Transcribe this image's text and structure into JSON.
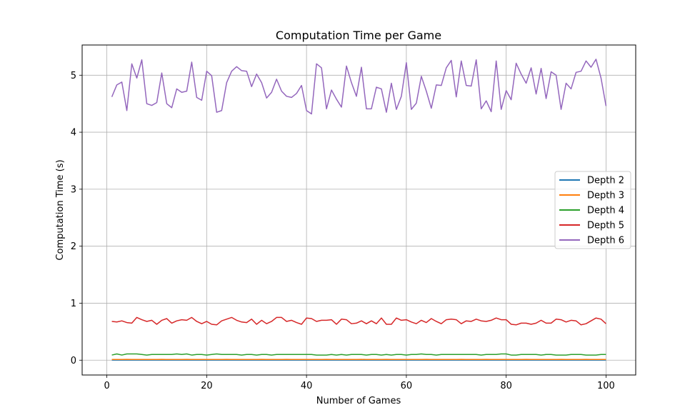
{
  "chart_data": {
    "type": "line",
    "title": "Computation Time per Game",
    "xlabel": "Number of Games",
    "ylabel": "Computation Time (s)",
    "xlim": [
      -4.95,
      105.95
    ],
    "ylim": [
      -0.26,
      5.53
    ],
    "xticks": [
      0,
      20,
      40,
      60,
      80,
      100
    ],
    "yticks": [
      0,
      1,
      2,
      3,
      4,
      5
    ],
    "grid": true,
    "legend_position": "center-right",
    "x_start": 1,
    "series": [
      {
        "name": "Depth 2",
        "color": "#1f77b4",
        "values": [
          0.002,
          0.002,
          0.002,
          0.002,
          0.002,
          0.002,
          0.002,
          0.002,
          0.002,
          0.002,
          0.002,
          0.002,
          0.002,
          0.002,
          0.002,
          0.002,
          0.002,
          0.002,
          0.002,
          0.002,
          0.002,
          0.002,
          0.002,
          0.002,
          0.002,
          0.002,
          0.002,
          0.002,
          0.002,
          0.002,
          0.002,
          0.002,
          0.002,
          0.002,
          0.002,
          0.002,
          0.002,
          0.002,
          0.002,
          0.002,
          0.002,
          0.002,
          0.002,
          0.002,
          0.002,
          0.002,
          0.002,
          0.002,
          0.002,
          0.002,
          0.002,
          0.002,
          0.002,
          0.002,
          0.002,
          0.002,
          0.002,
          0.002,
          0.002,
          0.002,
          0.002,
          0.002,
          0.002,
          0.002,
          0.002,
          0.002,
          0.002,
          0.002,
          0.002,
          0.002,
          0.002,
          0.002,
          0.002,
          0.002,
          0.002,
          0.002,
          0.002,
          0.002,
          0.002,
          0.002,
          0.002,
          0.002,
          0.002,
          0.002,
          0.002,
          0.002,
          0.002,
          0.002,
          0.002,
          0.002,
          0.002,
          0.002,
          0.002,
          0.002,
          0.002,
          0.002,
          0.002,
          0.002,
          0.002,
          0.002
        ]
      },
      {
        "name": "Depth 3",
        "color": "#ff7f0e",
        "values": [
          0.012,
          0.013,
          0.012,
          0.014,
          0.013,
          0.012,
          0.013,
          0.012,
          0.013,
          0.012,
          0.014,
          0.012,
          0.013,
          0.012,
          0.013,
          0.014,
          0.012,
          0.013,
          0.012,
          0.013,
          0.012,
          0.013,
          0.012,
          0.014,
          0.013,
          0.012,
          0.013,
          0.012,
          0.013,
          0.012,
          0.014,
          0.012,
          0.013,
          0.012,
          0.013,
          0.014,
          0.012,
          0.013,
          0.012,
          0.013,
          0.012,
          0.013,
          0.012,
          0.014,
          0.013,
          0.012,
          0.013,
          0.012,
          0.013,
          0.012,
          0.014,
          0.012,
          0.013,
          0.012,
          0.013,
          0.014,
          0.012,
          0.013,
          0.012,
          0.013,
          0.012,
          0.013,
          0.012,
          0.014,
          0.013,
          0.012,
          0.013,
          0.012,
          0.013,
          0.012,
          0.014,
          0.012,
          0.013,
          0.012,
          0.013,
          0.014,
          0.012,
          0.013,
          0.012,
          0.013,
          0.012,
          0.013,
          0.012,
          0.014,
          0.013,
          0.012,
          0.013,
          0.012,
          0.013,
          0.012,
          0.014,
          0.012,
          0.013,
          0.012,
          0.013,
          0.014,
          0.012,
          0.013,
          0.012,
          0.013
        ]
      },
      {
        "name": "Depth 4",
        "color": "#2ca02c",
        "values": [
          0.09,
          0.11,
          0.09,
          0.11,
          0.11,
          0.11,
          0.1,
          0.09,
          0.1,
          0.1,
          0.1,
          0.1,
          0.1,
          0.11,
          0.1,
          0.11,
          0.09,
          0.1,
          0.1,
          0.09,
          0.1,
          0.11,
          0.1,
          0.1,
          0.1,
          0.1,
          0.09,
          0.1,
          0.1,
          0.09,
          0.1,
          0.1,
          0.09,
          0.1,
          0.1,
          0.1,
          0.1,
          0.1,
          0.1,
          0.1,
          0.1,
          0.09,
          0.09,
          0.09,
          0.1,
          0.09,
          0.1,
          0.09,
          0.1,
          0.1,
          0.1,
          0.09,
          0.1,
          0.1,
          0.09,
          0.1,
          0.09,
          0.1,
          0.1,
          0.09,
          0.1,
          0.1,
          0.11,
          0.1,
          0.1,
          0.09,
          0.1,
          0.1,
          0.1,
          0.1,
          0.1,
          0.1,
          0.1,
          0.1,
          0.09,
          0.1,
          0.1,
          0.1,
          0.11,
          0.11,
          0.09,
          0.09,
          0.1,
          0.1,
          0.1,
          0.1,
          0.09,
          0.1,
          0.1,
          0.09,
          0.09,
          0.09,
          0.1,
          0.1,
          0.1,
          0.09,
          0.09,
          0.09,
          0.1,
          0.1
        ]
      },
      {
        "name": "Depth 5",
        "color": "#d62728",
        "values": [
          0.68,
          0.67,
          0.69,
          0.66,
          0.65,
          0.75,
          0.71,
          0.68,
          0.7,
          0.63,
          0.7,
          0.73,
          0.65,
          0.69,
          0.71,
          0.7,
          0.75,
          0.68,
          0.64,
          0.68,
          0.63,
          0.62,
          0.69,
          0.72,
          0.75,
          0.7,
          0.67,
          0.66,
          0.72,
          0.63,
          0.7,
          0.64,
          0.68,
          0.75,
          0.75,
          0.68,
          0.7,
          0.66,
          0.63,
          0.74,
          0.73,
          0.68,
          0.7,
          0.7,
          0.71,
          0.63,
          0.72,
          0.71,
          0.64,
          0.65,
          0.69,
          0.64,
          0.69,
          0.64,
          0.74,
          0.63,
          0.63,
          0.74,
          0.7,
          0.71,
          0.67,
          0.64,
          0.7,
          0.66,
          0.73,
          0.68,
          0.64,
          0.71,
          0.72,
          0.71,
          0.64,
          0.69,
          0.68,
          0.72,
          0.69,
          0.68,
          0.7,
          0.74,
          0.71,
          0.71,
          0.63,
          0.62,
          0.65,
          0.65,
          0.63,
          0.65,
          0.7,
          0.65,
          0.65,
          0.72,
          0.71,
          0.67,
          0.7,
          0.69,
          0.62,
          0.64,
          0.69,
          0.74,
          0.72,
          0.64
        ]
      },
      {
        "name": "Depth 6",
        "color": "#9467bd",
        "values": [
          4.62,
          4.83,
          4.88,
          4.38,
          5.2,
          4.95,
          5.27,
          4.5,
          4.47,
          4.52,
          5.04,
          4.5,
          4.43,
          4.76,
          4.7,
          4.72,
          5.23,
          4.61,
          4.56,
          5.07,
          4.99,
          4.35,
          4.38,
          4.87,
          5.07,
          5.15,
          5.08,
          5.07,
          4.8,
          5.02,
          4.87,
          4.6,
          4.7,
          4.93,
          4.72,
          4.63,
          4.61,
          4.68,
          4.82,
          4.38,
          4.32,
          5.2,
          5.13,
          4.41,
          4.74,
          4.58,
          4.44,
          5.16,
          4.87,
          4.63,
          5.14,
          4.41,
          4.41,
          4.79,
          4.76,
          4.35,
          4.86,
          4.4,
          4.63,
          5.22,
          4.4,
          4.51,
          4.98,
          4.72,
          4.42,
          4.83,
          4.82,
          5.13,
          5.26,
          4.62,
          5.25,
          4.82,
          4.81,
          5.27,
          4.41,
          4.55,
          4.36,
          5.25,
          4.4,
          4.73,
          4.57,
          5.21,
          5.02,
          4.86,
          5.13,
          4.67,
          5.12,
          4.59,
          5.06,
          5.0,
          4.4,
          4.86,
          4.76,
          5.05,
          5.07,
          5.25,
          5.14,
          5.28,
          4.95,
          4.46
        ]
      }
    ]
  }
}
